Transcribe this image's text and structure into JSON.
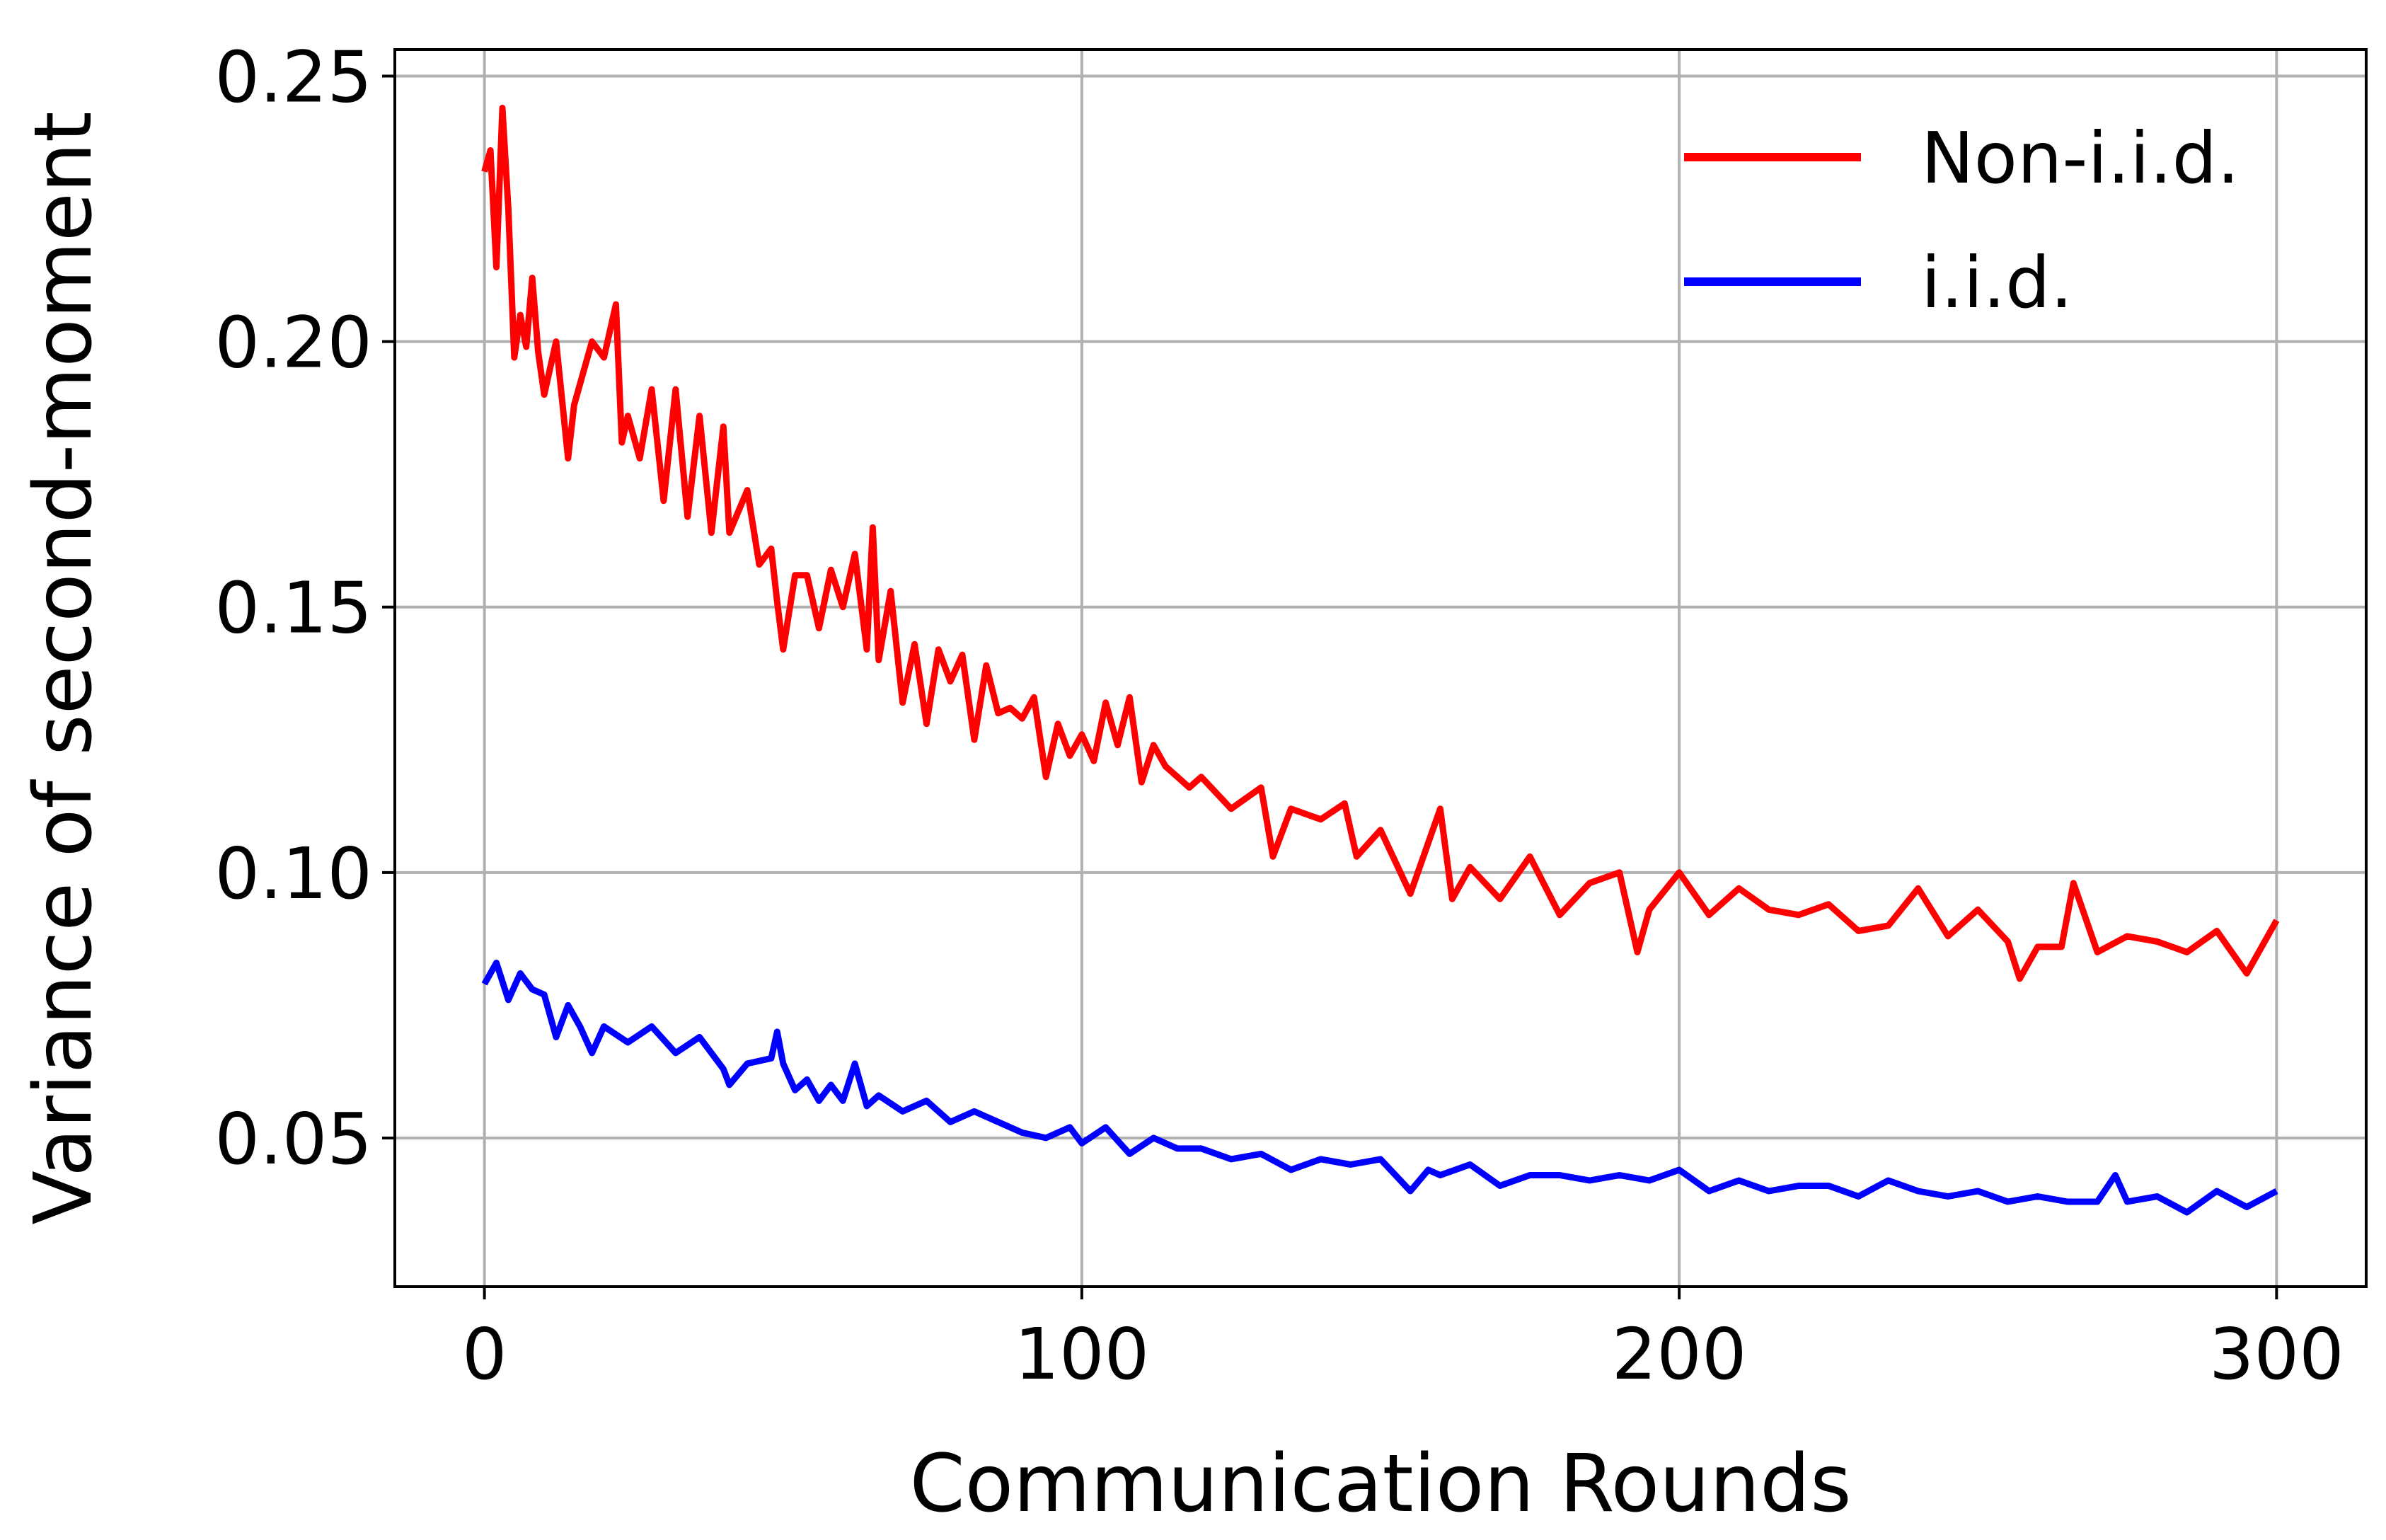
{
  "chart_data": {
    "type": "line",
    "title": "",
    "xlabel": "Communication Rounds",
    "ylabel": "Variance of second-moment",
    "xlim": [
      -15,
      315
    ],
    "ylim": [
      0.022,
      0.255
    ],
    "xticks": [
      0,
      100,
      200,
      300
    ],
    "xtick_labels": [
      "0",
      "100",
      "200",
      "300"
    ],
    "yticks": [
      0.05,
      0.1,
      0.15,
      0.2,
      0.25
    ],
    "ytick_labels": [
      "0.05",
      "0.10",
      "0.15",
      "0.20",
      "0.25"
    ],
    "grid": true,
    "legend_position": "top-right",
    "series": [
      {
        "name": "Non-i.i.d.",
        "color": "#ff0000",
        "x": [
          0,
          1,
          2,
          3,
          4,
          5,
          6,
          7,
          8,
          9,
          10,
          12,
          14,
          15,
          16,
          18,
          20,
          22,
          23,
          24,
          26,
          28,
          30,
          32,
          34,
          36,
          38,
          40,
          41,
          44,
          46,
          48,
          49,
          50,
          52,
          54,
          56,
          58,
          60,
          62,
          64,
          65,
          66,
          68,
          70,
          72,
          74,
          76,
          78,
          80,
          82,
          84,
          86,
          88,
          90,
          92,
          94,
          96,
          98,
          100,
          102,
          104,
          106,
          108,
          110,
          112,
          114,
          116,
          118,
          120,
          125,
          130,
          132,
          135,
          140,
          144,
          146,
          150,
          155,
          160,
          162,
          165,
          170,
          175,
          180,
          185,
          190,
          193,
          195,
          200,
          205,
          210,
          215,
          220,
          225,
          230,
          235,
          240,
          245,
          250,
          255,
          257,
          260,
          264,
          266,
          270,
          275,
          280,
          285,
          290,
          295,
          300
        ],
        "values": [
          0.232,
          0.236,
          0.214,
          0.244,
          0.225,
          0.197,
          0.205,
          0.199,
          0.212,
          0.198,
          0.19,
          0.2,
          0.178,
          0.188,
          0.192,
          0.2,
          0.197,
          0.207,
          0.181,
          0.186,
          0.178,
          0.191,
          0.17,
          0.191,
          0.167,
          0.186,
          0.164,
          0.184,
          0.164,
          0.172,
          0.158,
          0.161,
          0.151,
          0.142,
          0.156,
          0.156,
          0.146,
          0.157,
          0.15,
          0.16,
          0.142,
          0.165,
          0.14,
          0.153,
          0.132,
          0.143,
          0.128,
          0.142,
          0.136,
          0.141,
          0.125,
          0.139,
          0.13,
          0.131,
          0.129,
          0.133,
          0.118,
          0.128,
          0.122,
          0.126,
          0.121,
          0.132,
          0.124,
          0.133,
          0.117,
          0.124,
          0.12,
          0.118,
          0.116,
          0.118,
          0.112,
          0.116,
          0.103,
          0.112,
          0.11,
          0.113,
          0.103,
          0.108,
          0.096,
          0.112,
          0.095,
          0.101,
          0.095,
          0.103,
          0.092,
          0.098,
          0.1,
          0.085,
          0.093,
          0.1,
          0.092,
          0.097,
          0.093,
          0.092,
          0.094,
          0.089,
          0.09,
          0.097,
          0.088,
          0.093,
          0.087,
          0.08,
          0.086,
          0.086,
          0.098,
          0.085,
          0.088,
          0.087,
          0.085,
          0.089,
          0.081,
          0.091
        ]
      },
      {
        "name": "i.i.d.",
        "color": "#0000ff",
        "x": [
          0,
          2,
          4,
          6,
          8,
          10,
          12,
          14,
          16,
          18,
          20,
          24,
          28,
          32,
          36,
          40,
          41,
          44,
          48,
          49,
          50,
          52,
          54,
          56,
          58,
          60,
          62,
          64,
          66,
          70,
          74,
          78,
          82,
          86,
          90,
          94,
          98,
          100,
          104,
          108,
          112,
          116,
          120,
          125,
          130,
          135,
          140,
          145,
          150,
          155,
          158,
          160,
          165,
          170,
          175,
          180,
          185,
          190,
          195,
          200,
          205,
          210,
          215,
          220,
          225,
          230,
          235,
          240,
          245,
          250,
          255,
          260,
          265,
          270,
          273,
          275,
          280,
          285,
          290,
          295,
          300
        ],
        "values": [
          0.079,
          0.083,
          0.076,
          0.081,
          0.078,
          0.077,
          0.069,
          0.075,
          0.071,
          0.066,
          0.071,
          0.068,
          0.071,
          0.066,
          0.069,
          0.063,
          0.06,
          0.064,
          0.065,
          0.07,
          0.064,
          0.059,
          0.061,
          0.057,
          0.06,
          0.057,
          0.064,
          0.056,
          0.058,
          0.055,
          0.057,
          0.053,
          0.055,
          0.053,
          0.051,
          0.05,
          0.052,
          0.049,
          0.052,
          0.047,
          0.05,
          0.048,
          0.048,
          0.046,
          0.047,
          0.044,
          0.046,
          0.045,
          0.046,
          0.04,
          0.044,
          0.043,
          0.045,
          0.041,
          0.043,
          0.043,
          0.042,
          0.043,
          0.042,
          0.044,
          0.04,
          0.042,
          0.04,
          0.041,
          0.041,
          0.039,
          0.042,
          0.04,
          0.039,
          0.04,
          0.038,
          0.039,
          0.038,
          0.038,
          0.043,
          0.038,
          0.039,
          0.036,
          0.04,
          0.037,
          0.04
        ]
      }
    ]
  }
}
